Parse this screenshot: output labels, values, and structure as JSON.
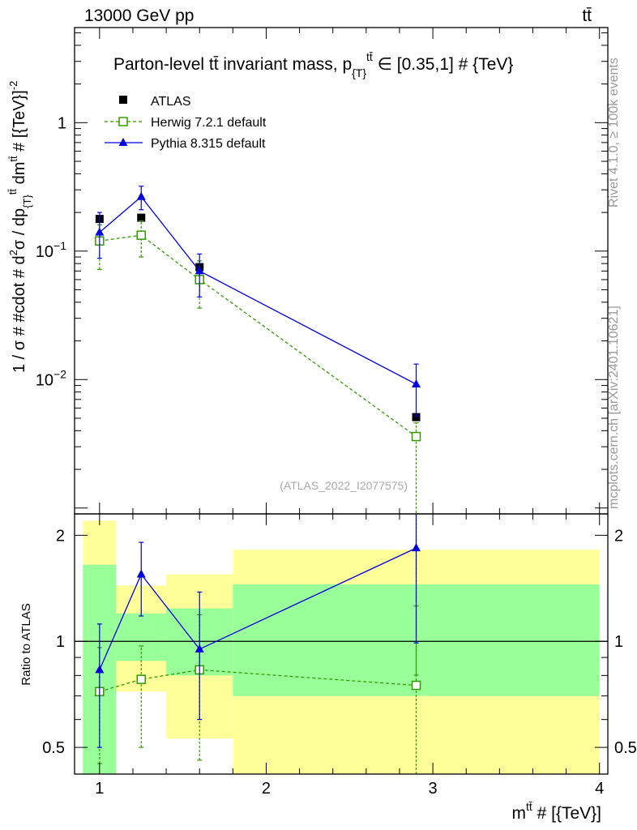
{
  "header": {
    "left": "13000 GeV pp",
    "right": "tt̄"
  },
  "side_labels": {
    "rivet": "Rivet 4.1.0, ≥ 100k events",
    "mcplots": "mcplots.cern.ch [arXiv:2401.10621]"
  },
  "chart_data": {
    "type": "scatter",
    "title": "Parton-level tt̄ invariant mass, p_{T}^{tt̄} ∈ [0.35,1] # {TeV}",
    "title_parts": {
      "main": "Parton-level tt̄ invariant mass, p",
      "sub": "{T}",
      "sup": "tt̄",
      "tail": " ∈ [0.35,1] # {TeV}"
    },
    "watermark": "(ATLAS_2022_I2077575)",
    "xlabel": "m^{tt̄} # [{TeV}]",
    "xlabel_parts": {
      "main": "m",
      "sup": "tt̄",
      "tail": " # [{TeV}]"
    },
    "ylabel": "1 / σ # #cdot # d²σ / dp_{T}^{tt̄} dm^{tt̄} # [{TeV}]^{-2}",
    "ylabel_parts": {
      "a": "1 / σ # #cdot # d",
      "a_sup": "2",
      "b": "σ / dp",
      "b_sub": "{T}",
      "b_sup": "tt̄",
      "c": " dm",
      "c_sup": "tt̄",
      "d": " # [{TeV}]",
      "d_sup": "-2"
    },
    "ratio_ylabel": "Ratio to ATLAS",
    "xlim": [
      0.85,
      4.05
    ],
    "ylim": [
      0.0009,
      5.5
    ],
    "yscale": "log",
    "ratio_ylim": [
      0.42,
      2.3
    ],
    "x_ticks": [
      "1",
      "2",
      "3",
      "4"
    ],
    "x_tick_values": [
      1,
      2,
      3,
      4
    ],
    "y_ticks": [
      {
        "value": 1,
        "base": "1",
        "exp": ""
      },
      {
        "value": 0.1,
        "base": "10",
        "exp": "−1"
      },
      {
        "value": 0.01,
        "base": "10",
        "exp": "−2"
      }
    ],
    "ratio_ticks": [
      "0.5",
      "1",
      "2"
    ],
    "ratio_tick_values": [
      0.5,
      1,
      2
    ],
    "bins": [
      {
        "lo": 0.9,
        "hi": 1.1
      },
      {
        "lo": 1.1,
        "hi": 1.4
      },
      {
        "lo": 1.4,
        "hi": 1.8
      },
      {
        "lo": 1.8,
        "hi": 4.0
      }
    ],
    "series": [
      {
        "name": "ATLAS",
        "style": "data",
        "color": "#000000",
        "x": [
          1.0,
          1.25,
          1.6,
          2.9
        ],
        "values": [
          0.178,
          0.182,
          0.075,
          0.0051
        ],
        "band_inner": [
          [
            0.0,
            1.65
          ],
          [
            0.88,
            1.2
          ],
          [
            0.8,
            1.24
          ],
          [
            0.7,
            1.45
          ]
        ],
        "band_outer": [
          [
            0.0,
            2.2
          ],
          [
            0.72,
            1.44
          ],
          [
            0.53,
            1.55
          ],
          [
            0.0,
            1.82
          ]
        ]
      },
      {
        "name": "Herwig 7.2.1 default",
        "style": "dashed-open-square",
        "color": "#339900",
        "x": [
          1.0,
          1.25,
          1.6,
          2.9
        ],
        "values": [
          0.12,
          0.133,
          0.06,
          0.0036
        ],
        "err_lo": [
          0.072,
          0.09,
          0.036,
          5e-05
        ],
        "err_hi": [
          0.16,
          0.172,
          0.084,
          0.0046
        ],
        "ratio": [
          0.72,
          0.78,
          0.83,
          0.75
        ],
        "ratio_lo": [
          0.45,
          0.5,
          0.46,
          0.0
        ],
        "ratio_hi": [
          0.96,
          0.97,
          1.19,
          1.26
        ]
      },
      {
        "name": "Pythia 8.315 default",
        "style": "solid-filled-triangle",
        "color": "#0000dd",
        "x": [
          1.0,
          1.25,
          1.6,
          2.9
        ],
        "values": [
          0.14,
          0.265,
          0.07,
          0.0092
        ],
        "err_lo": [
          0.088,
          0.21,
          0.044,
          0.0052
        ],
        "err_hi": [
          0.2,
          0.32,
          0.095,
          0.0132
        ],
        "ratio": [
          0.83,
          1.55,
          0.95,
          1.84
        ],
        "ratio_lo": [
          0.5,
          1.18,
          0.6,
          0.99
        ],
        "ratio_hi": [
          1.12,
          1.91,
          1.38,
          2.3
        ]
      }
    ],
    "legend": {
      "placement": "top-left"
    }
  }
}
